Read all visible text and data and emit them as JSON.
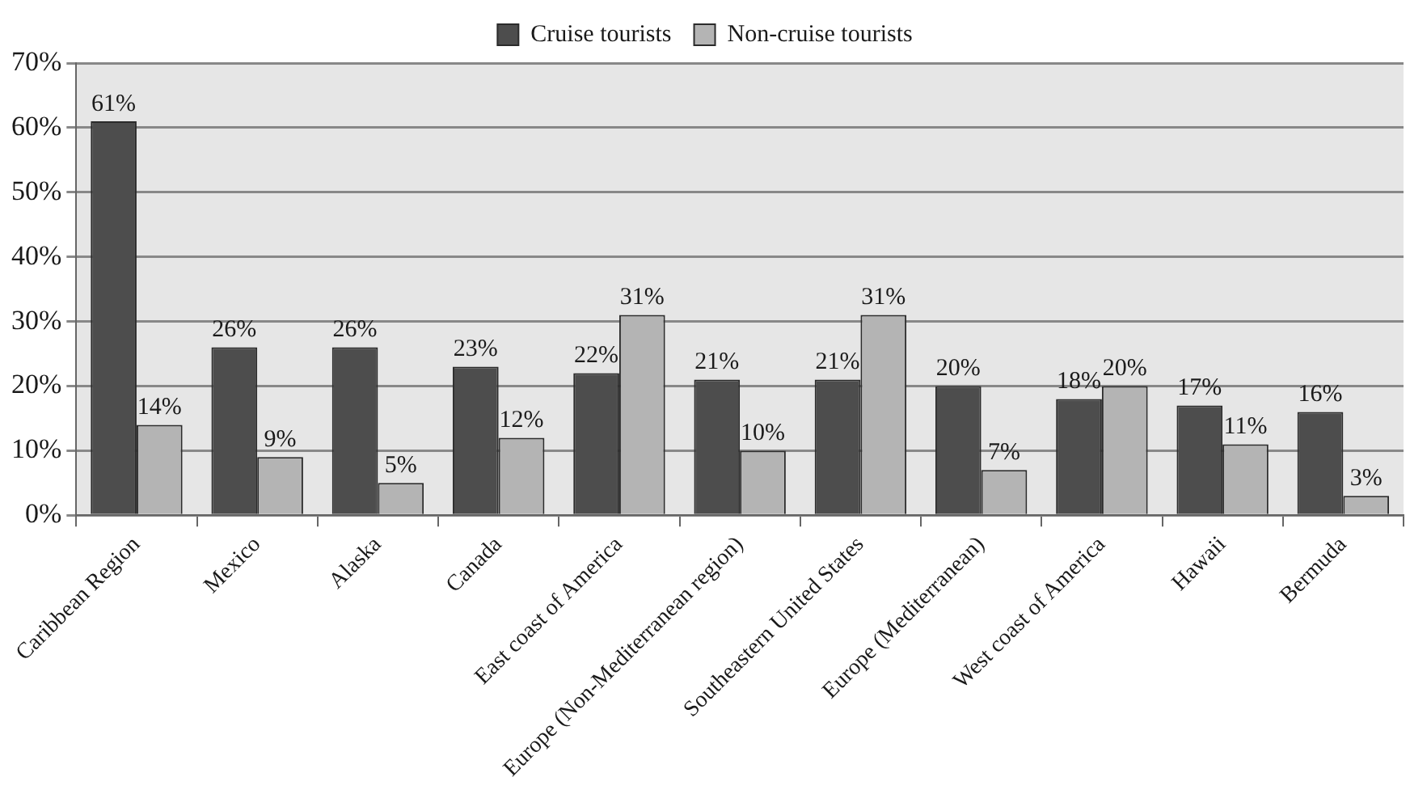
{
  "chart_data": {
    "type": "bar",
    "categories": [
      "Caribbean Region",
      "Mexico",
      "Alaska",
      "Canada",
      "East coast of America",
      "Europe (Non-Mediterranean region)",
      "Southeastern United States",
      "Europe (Mediterranean)",
      "West coast of America",
      "Hawaii",
      "Bermuda"
    ],
    "series": [
      {
        "name": "Cruise tourists",
        "color": "#4d4d4d",
        "values": [
          61,
          26,
          26,
          23,
          22,
          21,
          21,
          20,
          18,
          17,
          16
        ],
        "value_labels": [
          "61%",
          "26%",
          "26%",
          "23%",
          "22%",
          "21%",
          "21%",
          "20%",
          "18%",
          "17%",
          "16%"
        ]
      },
      {
        "name": "Non-cruise tourists",
        "color": "#b4b4b4",
        "values": [
          14,
          9,
          5,
          12,
          31,
          10,
          31,
          7,
          20,
          11,
          3
        ],
        "value_labels": [
          "14%",
          "9%",
          "5%",
          "12%",
          "31%",
          "10%",
          "31%",
          "7%",
          "20%",
          "11%",
          "3%"
        ]
      }
    ],
    "ylim": [
      0,
      70
    ],
    "yticks": [
      {
        "value": 0,
        "label": "0%"
      },
      {
        "value": 10,
        "label": "10%"
      },
      {
        "value": 20,
        "label": "20%"
      },
      {
        "value": 30,
        "label": "30%"
      },
      {
        "value": 40,
        "label": "40%"
      },
      {
        "value": 50,
        "label": "50%"
      },
      {
        "value": 60,
        "label": "60%"
      },
      {
        "value": 70,
        "label": "70%"
      }
    ],
    "grid": "y",
    "legend": "top"
  }
}
